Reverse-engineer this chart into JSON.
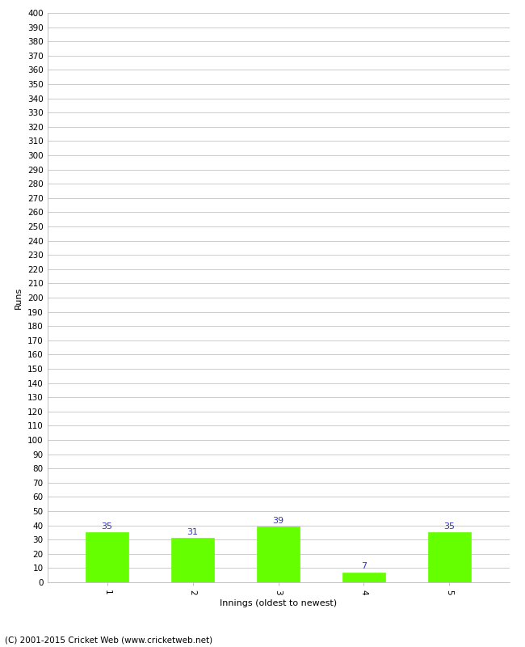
{
  "categories": [
    "1",
    "2",
    "3",
    "4",
    "5"
  ],
  "values": [
    35,
    31,
    39,
    7,
    35
  ],
  "bar_color": "#66ff00",
  "bar_edge_color": "#66ff00",
  "xlabel": "Innings (oldest to newest)",
  "ylabel": "Runs",
  "ylim": [
    0,
    400
  ],
  "ytick_step": 10,
  "label_color": "#3333cc",
  "label_fontsize": 8,
  "axis_fontsize": 8,
  "tick_fontsize": 7.5,
  "footer": "(C) 2001-2015 Cricket Web (www.cricketweb.net)",
  "background_color": "#ffffff",
  "grid_color": "#cccccc",
  "bar_width": 0.5
}
